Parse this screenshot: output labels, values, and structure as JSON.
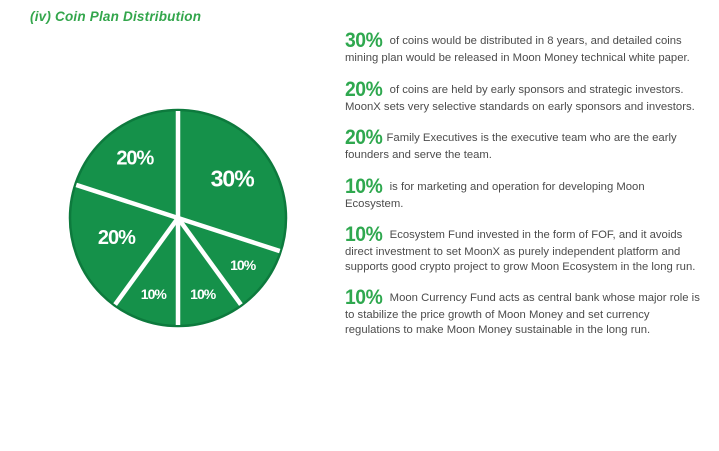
{
  "page": {
    "title_prefix": "(iv) ",
    "title": "Coin Plan Distribution",
    "title_color": "#33a64c",
    "background": "#ffffff"
  },
  "chart_data": {
    "type": "pie",
    "title": "Coin Plan Distribution",
    "unit": "percent of coins",
    "color": "#15914a",
    "edge_color": "#0d7a3d",
    "divider_color": "#ffffff",
    "label_color": "#ffffff",
    "start_angle_deg": 0,
    "direction": "clockwise",
    "slices": [
      {
        "label": "30%",
        "value": 30,
        "label_r": 0.62,
        "font_size": 23
      },
      {
        "label": "10%",
        "value": 10,
        "label_r": 0.74,
        "font_size": 14
      },
      {
        "label": "10%",
        "value": 10,
        "label_r": 0.74,
        "font_size": 14
      },
      {
        "label": "10%",
        "value": 10,
        "label_r": 0.74,
        "font_size": 14
      },
      {
        "label": "20%",
        "value": 20,
        "label_r": 0.6,
        "font_size": 20
      },
      {
        "label": "20%",
        "value": 20,
        "label_r": 0.68,
        "font_size": 20
      }
    ]
  },
  "paragraphs": [
    {
      "pct": "30%",
      "text": " of coins would be distributed in 8 years, and detailed coins mining plan would be released in Moon Money technical white paper."
    },
    {
      "pct": "20%",
      "text": " of coins are held by early sponsors and strategic investors.  MoonX sets very selective standards on early sponsors and investors."
    },
    {
      "pct": "20%",
      "text": "Family Executives is the executive team who are the early founders and serve the team."
    },
    {
      "pct": "10%",
      "text": " is for marketing and operation for developing Moon Ecosystem."
    },
    {
      "pct": "10%",
      "text": " Ecosystem Fund invested in the form of FOF, and it avoids direct investment to set MoonX as purely independent platform and supports good crypto project to grow Moon Ecosystem in the long run."
    },
    {
      "pct": "10%",
      "text": " Moon Currency Fund acts as central bank whose major role is to stabilize the price growth of Moon Money and set currency regulations to make Moon Money sustainable in the long run."
    }
  ]
}
